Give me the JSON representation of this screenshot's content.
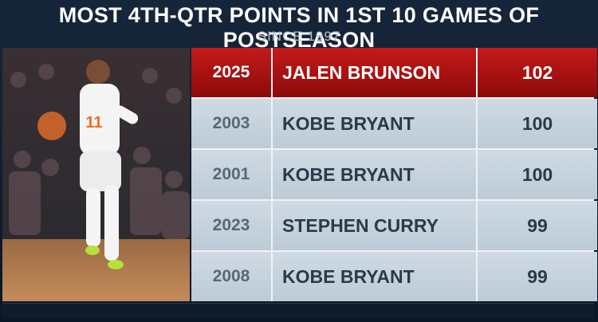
{
  "header": {
    "title": "MOST 4TH-QTR POINTS IN 1ST 10 GAMES OF POSTSEASON",
    "subtitle": "SINCE 1997"
  },
  "table": {
    "rows": [
      [
        2025,
        "JALEN BRUNSON",
        102
      ],
      [
        2003,
        "KOBE BRYANT",
        100
      ],
      [
        2001,
        "KOBE BRYANT",
        100
      ],
      [
        2023,
        "STEPHEN CURRY",
        99
      ],
      [
        2008,
        "KOBE BRYANT",
        99
      ]
    ]
  }
}
